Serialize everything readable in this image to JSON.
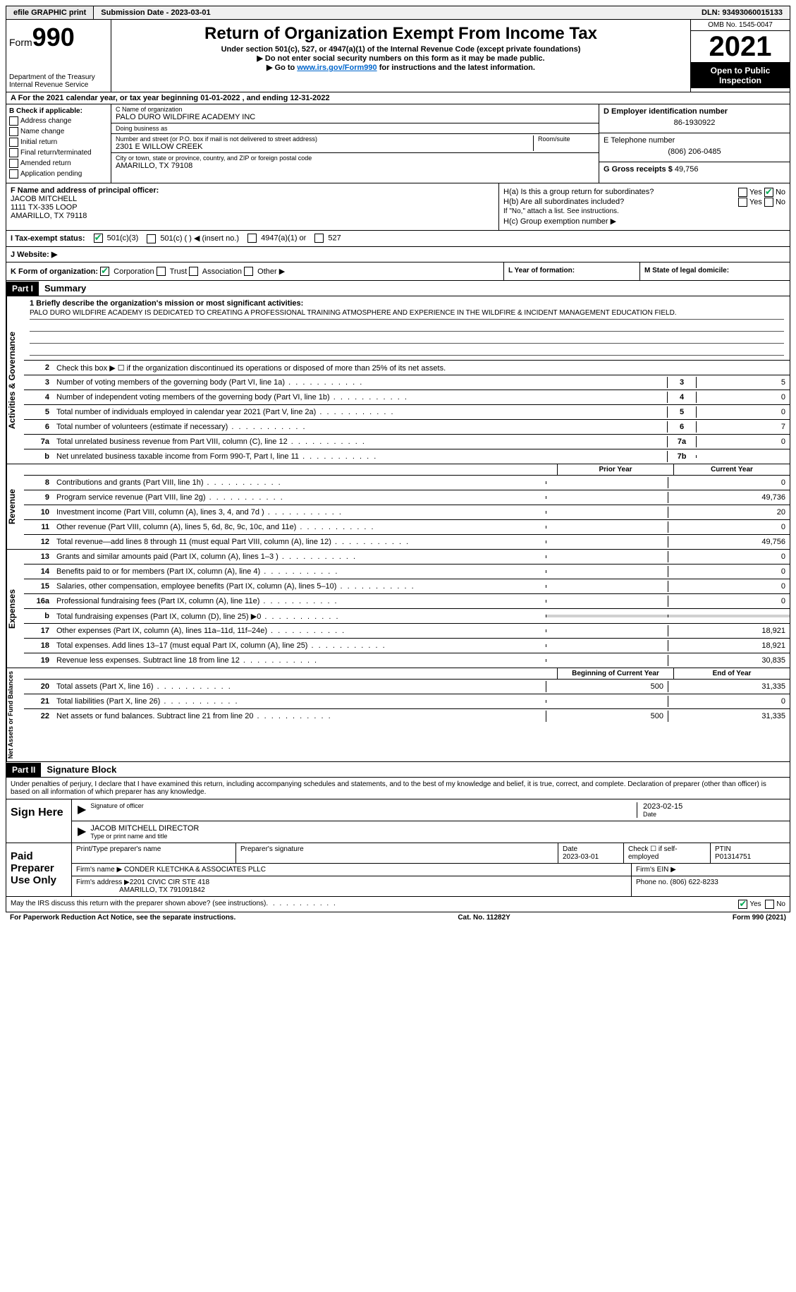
{
  "topbar": {
    "efile": "efile GRAPHIC print",
    "submission_label": "Submission Date - ",
    "submission_date": "2023-03-01",
    "dln_label": "DLN: ",
    "dln": "93493060015133"
  },
  "header": {
    "form_word": "Form",
    "form_number": "990",
    "dept1": "Department of the Treasury",
    "dept2": "Internal Revenue Service",
    "title": "Return of Organization Exempt From Income Tax",
    "subtitle": "Under section 501(c), 527, or 4947(a)(1) of the Internal Revenue Code (except private foundations)",
    "note1": "▶ Do not enter social security numbers on this form as it may be made public.",
    "note2_pre": "▶ Go to ",
    "note2_link": "www.irs.gov/Form990",
    "note2_post": " for instructions and the latest information.",
    "omb": "OMB No. 1545-0047",
    "year": "2021",
    "inspect": "Open to Public Inspection"
  },
  "row_a": {
    "text_pre": "A For the 2021 calendar year, or tax year beginning ",
    "begin": "01-01-2022",
    "mid": "   , and ending ",
    "end": "12-31-2022"
  },
  "col_b": {
    "label": "B Check if applicable:",
    "items": [
      "Address change",
      "Name change",
      "Initial return",
      "Final return/terminated",
      "Amended return",
      "Application pending"
    ]
  },
  "col_c": {
    "name_label": "C Name of organization",
    "name": "PALO DURO WILDFIRE ACADEMY INC",
    "dba_label": "Doing business as",
    "dba": "",
    "street_label": "Number and street (or P.O. box if mail is not delivered to street address)",
    "room_label": "Room/suite",
    "street": "2301 E WILLOW CREEK",
    "city_label": "City or town, state or province, country, and ZIP or foreign postal code",
    "city": "AMARILLO, TX  79108"
  },
  "col_d": {
    "ein_label": "D Employer identification number",
    "ein": "86-1930922",
    "phone_label": "E Telephone number",
    "phone": "(806) 206-0485",
    "gross_label": "G Gross receipts $ ",
    "gross": "49,756"
  },
  "col_f": {
    "label": "F Name and address of principal officer:",
    "name": "JACOB MITCHELL",
    "addr1": "1111 TX-335 LOOP",
    "addr2": "AMARILLO, TX  79118"
  },
  "col_h": {
    "ha": "H(a)  Is this a group return for subordinates?",
    "hb": "H(b)  Are all subordinates included?",
    "hb_note": "If \"No,\" attach a list. See instructions.",
    "hc": "H(c)  Group exemption number ▶",
    "yes": "Yes",
    "no": "No"
  },
  "row_i": {
    "label": "I  Tax-exempt status:",
    "opt1": "501(c)(3)",
    "opt2": "501(c) (   ) ◀ (insert no.)",
    "opt3": "4947(a)(1) or",
    "opt4": "527"
  },
  "row_j": {
    "label": "J  Website: ▶"
  },
  "row_k": {
    "k_label": "K Form of organization:",
    "k_opts": [
      "Corporation",
      "Trust",
      "Association",
      "Other ▶"
    ],
    "l_label": "L Year of formation:",
    "m_label": "M State of legal domicile:"
  },
  "part1": {
    "tag": "Part I",
    "title": "Summary"
  },
  "mission": {
    "label": "1   Briefly describe the organization's mission or most significant activities:",
    "text": "PALO DURO WILDFIRE ACADEMY IS DEDICATED TO CREATING A PROFESSIONAL TRAINING ATMOSPHERE AND EXPERIENCE IN THE WILDFIRE & INCIDENT MANAGEMENT EDUCATION FIELD."
  },
  "governance": {
    "label": "Activities & Governance",
    "line2": "Check this box ▶ ☐  if the organization discontinued its operations or disposed of more than 25% of its net assets.",
    "lines": [
      {
        "n": "3",
        "d": "Number of voting members of the governing body (Part VI, line 1a)",
        "box": "3",
        "v": "5"
      },
      {
        "n": "4",
        "d": "Number of independent voting members of the governing body (Part VI, line 1b)",
        "box": "4",
        "v": "0"
      },
      {
        "n": "5",
        "d": "Total number of individuals employed in calendar year 2021 (Part V, line 2a)",
        "box": "5",
        "v": "0"
      },
      {
        "n": "6",
        "d": "Total number of volunteers (estimate if necessary)",
        "box": "6",
        "v": "7"
      },
      {
        "n": "7a",
        "d": "Total unrelated business revenue from Part VIII, column (C), line 12",
        "box": "7a",
        "v": "0"
      },
      {
        "n": "b",
        "d": "Net unrelated business taxable income from Form 990-T, Part I, line 11",
        "box": "7b",
        "v": ""
      }
    ]
  },
  "revenue": {
    "label": "Revenue",
    "prior": "Prior Year",
    "current": "Current Year",
    "lines": [
      {
        "n": "8",
        "d": "Contributions and grants (Part VIII, line 1h)",
        "p": "",
        "c": "0"
      },
      {
        "n": "9",
        "d": "Program service revenue (Part VIII, line 2g)",
        "p": "",
        "c": "49,736"
      },
      {
        "n": "10",
        "d": "Investment income (Part VIII, column (A), lines 3, 4, and 7d )",
        "p": "",
        "c": "20"
      },
      {
        "n": "11",
        "d": "Other revenue (Part VIII, column (A), lines 5, 6d, 8c, 9c, 10c, and 11e)",
        "p": "",
        "c": "0"
      },
      {
        "n": "12",
        "d": "Total revenue—add lines 8 through 11 (must equal Part VIII, column (A), line 12)",
        "p": "",
        "c": "49,756"
      }
    ]
  },
  "expenses": {
    "label": "Expenses",
    "lines": [
      {
        "n": "13",
        "d": "Grants and similar amounts paid (Part IX, column (A), lines 1–3 )",
        "p": "",
        "c": "0"
      },
      {
        "n": "14",
        "d": "Benefits paid to or for members (Part IX, column (A), line 4)",
        "p": "",
        "c": "0"
      },
      {
        "n": "15",
        "d": "Salaries, other compensation, employee benefits (Part IX, column (A), lines 5–10)",
        "p": "",
        "c": "0"
      },
      {
        "n": "16a",
        "d": "Professional fundraising fees (Part IX, column (A), line 11e)",
        "p": "",
        "c": "0"
      },
      {
        "n": "b",
        "d": "Total fundraising expenses (Part IX, column (D), line 25) ▶0",
        "p": "shaded",
        "c": "shaded"
      },
      {
        "n": "17",
        "d": "Other expenses (Part IX, column (A), lines 11a–11d, 11f–24e)",
        "p": "",
        "c": "18,921"
      },
      {
        "n": "18",
        "d": "Total expenses. Add lines 13–17 (must equal Part IX, column (A), line 25)",
        "p": "",
        "c": "18,921"
      },
      {
        "n": "19",
        "d": "Revenue less expenses. Subtract line 18 from line 12",
        "p": "",
        "c": "30,835"
      }
    ]
  },
  "netassets": {
    "label": "Net Assets or Fund Balances",
    "begin": "Beginning of Current Year",
    "end": "End of Year",
    "lines": [
      {
        "n": "20",
        "d": "Total assets (Part X, line 16)",
        "p": "500",
        "c": "31,335"
      },
      {
        "n": "21",
        "d": "Total liabilities (Part X, line 26)",
        "p": "",
        "c": "0"
      },
      {
        "n": "22",
        "d": "Net assets or fund balances. Subtract line 21 from line 20",
        "p": "500",
        "c": "31,335"
      }
    ]
  },
  "part2": {
    "tag": "Part II",
    "title": "Signature Block"
  },
  "perjury": "Under penalties of perjury, I declare that I have examined this return, including accompanying schedules and statements, and to the best of my knowledge and belief, it is true, correct, and complete. Declaration of preparer (other than officer) is based on all information of which preparer has any knowledge.",
  "sign": {
    "label": "Sign Here",
    "sig_label": "Signature of officer",
    "date_label": "Date",
    "date": "2023-02-15",
    "name": "JACOB MITCHELL  DIRECTOR",
    "name_label": "Type or print name and title"
  },
  "preparer": {
    "label": "Paid Preparer Use Only",
    "h1": "Print/Type preparer's name",
    "h2": "Preparer's signature",
    "h3_label": "Date",
    "h3": "2023-03-01",
    "h4": "Check ☐ if self-employed",
    "h5_label": "PTIN",
    "h5": "P01314751",
    "firm_name_label": "Firm's name      ▶ ",
    "firm_name": "CONDER KLETCHKA & ASSOCIATES PLLC",
    "firm_ein_label": "Firm's EIN ▶",
    "firm_addr_label": "Firm's address ▶",
    "firm_addr1": "2201 CIVIC CIR STE 418",
    "firm_addr2": "AMARILLO, TX  791091842",
    "firm_phone_label": "Phone no. ",
    "firm_phone": "(806) 622-8233"
  },
  "discuss": {
    "text": "May the IRS discuss this return with the preparer shown above? (see instructions)",
    "yes": "Yes",
    "no": "No"
  },
  "bottom": {
    "left": "For Paperwork Reduction Act Notice, see the separate instructions.",
    "mid": "Cat. No. 11282Y",
    "right": "Form 990 (2021)"
  }
}
